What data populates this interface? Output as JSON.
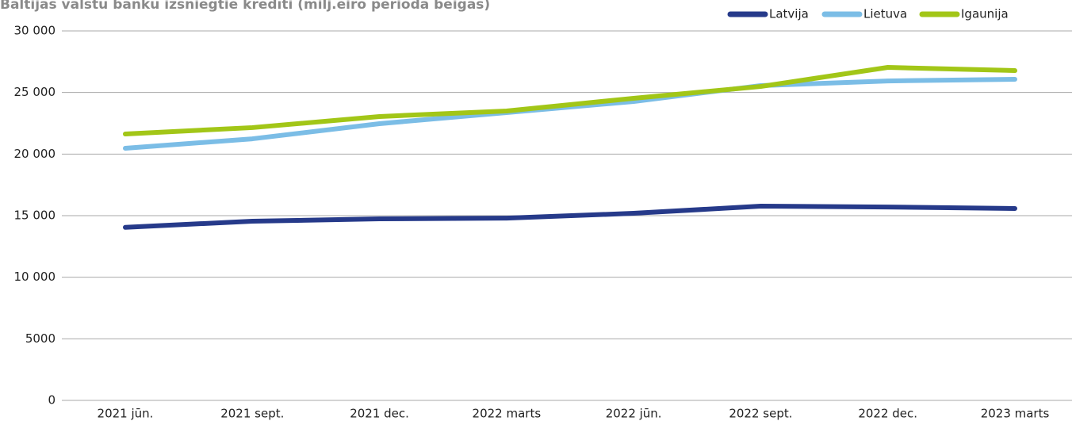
{
  "chart_data": {
    "type": "line",
    "title": "Baltijas valstu banku izsniegtie kredīti (milj.eiro perioda beigās)",
    "categories": [
      "2021 jūn.",
      "2021 sept.",
      "2021 dec.",
      "2022 marts",
      "2022 jūn.",
      "2022 sept.",
      "2022 dec.",
      "2023 marts"
    ],
    "series": [
      {
        "name": "Latvija",
        "color": "#263a8a",
        "values": [
          14050,
          14550,
          14740,
          14800,
          15190,
          15770,
          15700,
          15580
        ]
      },
      {
        "name": "Lietuva",
        "color": "#7bbde6",
        "values": [
          20470,
          21240,
          22470,
          23370,
          24270,
          25560,
          25940,
          26070
        ]
      },
      {
        "name": "Igaunija",
        "color": "#a2c617",
        "values": [
          21630,
          22150,
          23050,
          23500,
          24530,
          25490,
          27040,
          26780
        ]
      }
    ],
    "ylim": [
      0,
      30000
    ],
    "yticks": [
      0,
      5000,
      {
        "value": 10000,
        "label": "10 000"
      },
      {
        "value": 15000,
        "label": "15 000"
      },
      {
        "value": 20000,
        "label": "20 000"
      },
      {
        "value": 25000,
        "label": "25 000"
      },
      {
        "value": 30000,
        "label": "30 000"
      }
    ],
    "grid": true,
    "legend": "top-right"
  }
}
